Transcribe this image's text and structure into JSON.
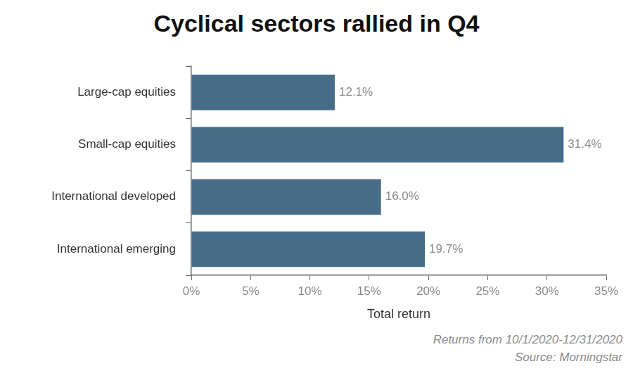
{
  "chart_data": {
    "type": "bar",
    "title": "Cyclical sectors rallied in Q4",
    "orientation": "horizontal",
    "categories": [
      "Large-cap equities",
      "Small-cap equities",
      "International developed",
      "International emerging"
    ],
    "values": [
      12.1,
      31.4,
      16.0,
      19.7
    ],
    "value_labels": [
      "12.1%",
      "31.4%",
      "16.0%",
      "19.7%"
    ],
    "data_labels": true,
    "color": "#476d89",
    "x_label": "Total return",
    "xlim": [
      0,
      35
    ],
    "xticks": [
      {
        "value": 0,
        "label": "0%"
      },
      {
        "value": 5,
        "label": "5%"
      },
      {
        "value": 10,
        "label": "10%"
      },
      {
        "value": 15,
        "label": "15%"
      },
      {
        "value": 20,
        "label": "20%"
      },
      {
        "value": 25,
        "label": "25%"
      },
      {
        "value": 30,
        "label": "30%"
      },
      {
        "value": 35,
        "label": "35%"
      }
    ],
    "grid": false,
    "annotations": [
      "Returns from 10/1/2020-12/31/2020",
      "Source: Morningstar"
    ]
  }
}
